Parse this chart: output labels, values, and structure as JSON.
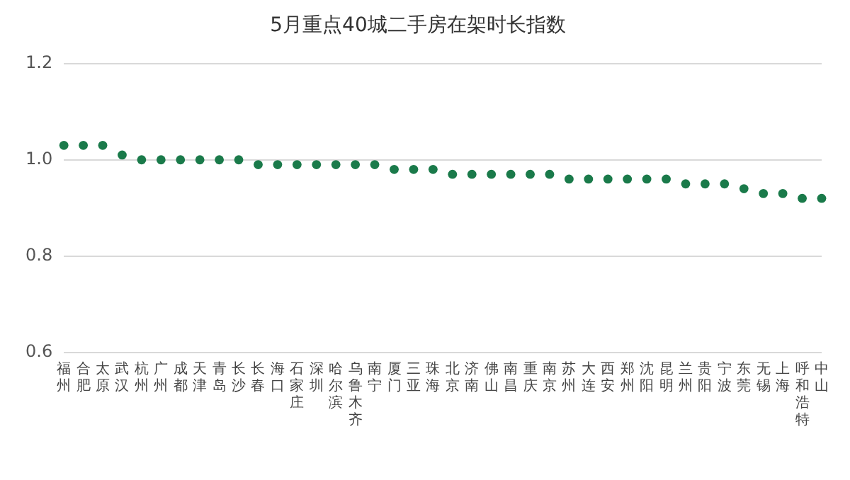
{
  "chart_data": {
    "type": "scatter",
    "title": "5月重点40城二手房在架时长指数",
    "categories": [
      "福州",
      "合肥",
      "太原",
      "武汉",
      "杭州",
      "广州",
      "成都",
      "天津",
      "青岛",
      "长沙",
      "长春",
      "海口",
      "石家庄",
      "深圳",
      "哈尔滨",
      "乌鲁木齐",
      "南宁",
      "厦门",
      "三亚",
      "珠海",
      "北京",
      "济南",
      "佛山",
      "南昌",
      "重庆",
      "南京",
      "苏州",
      "大连",
      "西安",
      "郑州",
      "沈阳",
      "昆明",
      "兰州",
      "贵阳",
      "宁波",
      "东莞",
      "无锡",
      "上海",
      "呼和浩特",
      "中山"
    ],
    "values": [
      1.03,
      1.03,
      1.03,
      1.01,
      1.0,
      1.0,
      1.0,
      1.0,
      1.0,
      1.0,
      0.99,
      0.99,
      0.99,
      0.99,
      0.99,
      0.99,
      0.99,
      0.98,
      0.98,
      0.98,
      0.97,
      0.97,
      0.97,
      0.97,
      0.97,
      0.97,
      0.96,
      0.96,
      0.96,
      0.96,
      0.96,
      0.96,
      0.95,
      0.95,
      0.95,
      0.94,
      0.93,
      0.93,
      0.92,
      0.92
    ],
    "color": "#1a7a4a",
    "marker": "circle",
    "grid": "y",
    "ylim": [
      0.6,
      1.2
    ],
    "yticks": [
      0.6,
      0.8,
      {
        "value": 1,
        "label": "1.0"
      },
      1.2
    ]
  }
}
